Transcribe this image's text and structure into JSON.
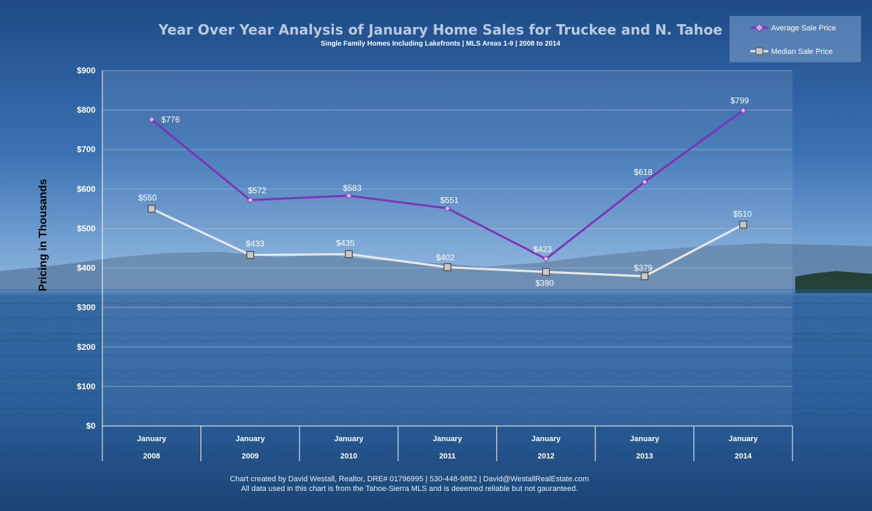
{
  "chart_data": {
    "type": "line",
    "title": "Year Over Year Analysis of January Home Sales for Truckee and N. Tahoe",
    "subtitle": "Single Family Homes Including Lakefronts | MLS Areas 1-9 | 2008 to 2014",
    "ylabel": "Pricing in Thousands",
    "xlabel": "",
    "ylim": [
      0,
      900
    ],
    "y_ticks": [
      "$0",
      "$100",
      "$200",
      "$300",
      "$400",
      "$500",
      "$600",
      "$700",
      "$800",
      "$900"
    ],
    "categories": [
      {
        "month": "January",
        "year": "2008"
      },
      {
        "month": "January",
        "year": "2009"
      },
      {
        "month": "January",
        "year": "2010"
      },
      {
        "month": "January",
        "year": "2011"
      },
      {
        "month": "January",
        "year": "2012"
      },
      {
        "month": "January",
        "year": "2013"
      },
      {
        "month": "January",
        "year": "2014"
      }
    ],
    "series": [
      {
        "name": "Average Sale Price",
        "color": "#7b35b5",
        "marker": "diamond",
        "values": [
          776,
          572,
          583,
          551,
          423,
          618,
          799
        ],
        "labels": [
          "$776",
          "$572",
          "$583",
          "$551",
          "$423",
          "$618",
          "$799"
        ]
      },
      {
        "name": "Median Sale Price",
        "color": "#e6e6e6",
        "marker": "square",
        "values": [
          550,
          433,
          435,
          402,
          390,
          379,
          510
        ],
        "labels": [
          "$550",
          "$433",
          "$435",
          "$402",
          "$390",
          "$379",
          "$510"
        ]
      }
    ],
    "legend_position": "top-right",
    "grid": true
  },
  "footer": {
    "line1": "Chart created by David Westall, Realtor, DRE# 01796995 | 530-448-9882 | David@WestallRealEstate.com",
    "line2": "All data used in this chart is from the Tahoe-Sierra MLS and is deeemed reliable but  not gauranteed."
  },
  "colors": {
    "sky_top": "#1f4f8f",
    "sky_bottom": "#6f9fd0",
    "water": "#2f68a6",
    "grid": "#9fb8d4"
  }
}
